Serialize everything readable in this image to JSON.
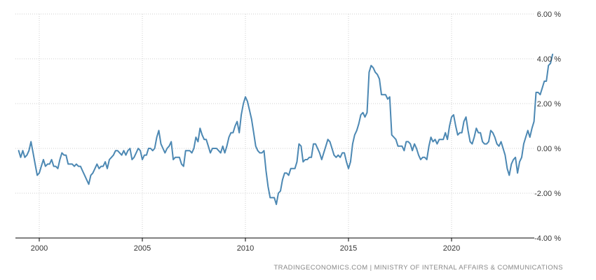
{
  "chart_data": {
    "type": "line",
    "title": "",
    "xlabel": "",
    "ylabel": "",
    "xlim": [
      1999.0,
      2024.9
    ],
    "ylim": [
      -4,
      6
    ],
    "grid": true,
    "colors": {
      "line": "#4c88b3",
      "grid": "#cfcfcf",
      "axis": "#000000"
    },
    "x_ticks": [
      {
        "value": 2000,
        "label": "2000"
      },
      {
        "value": 2005,
        "label": "2005"
      },
      {
        "value": 2010,
        "label": "2010"
      },
      {
        "value": 2015,
        "label": "2015"
      },
      {
        "value": 2020,
        "label": "2020"
      }
    ],
    "y_ticks": [
      {
        "value": 6,
        "label": "6.00 %"
      },
      {
        "value": 4,
        "label": "4.00 %"
      },
      {
        "value": 2,
        "label": "2.00 %"
      },
      {
        "value": 0,
        "label": "0.00 %"
      },
      {
        "value": -2,
        "label": "-2.00 %"
      },
      {
        "value": -4,
        "label": "-4.00 %"
      }
    ],
    "series": [
      {
        "points": [
          [
            1999.0,
            -0.1
          ],
          [
            1999.1,
            -0.4
          ],
          [
            1999.2,
            -0.1
          ],
          [
            1999.3,
            -0.4
          ],
          [
            1999.4,
            -0.3
          ],
          [
            1999.5,
            -0.1
          ],
          [
            1999.6,
            0.3
          ],
          [
            1999.7,
            -0.2
          ],
          [
            1999.8,
            -0.7
          ],
          [
            1999.9,
            -1.2
          ],
          [
            2000.0,
            -1.1
          ],
          [
            2000.1,
            -0.8
          ],
          [
            2000.2,
            -0.5
          ],
          [
            2000.3,
            -0.8
          ],
          [
            2000.4,
            -0.7
          ],
          [
            2000.5,
            -0.7
          ],
          [
            2000.6,
            -0.5
          ],
          [
            2000.7,
            -0.8
          ],
          [
            2000.8,
            -0.8
          ],
          [
            2000.9,
            -0.9
          ],
          [
            2001.0,
            -0.5
          ],
          [
            2001.1,
            -0.2
          ],
          [
            2001.2,
            -0.3
          ],
          [
            2001.3,
            -0.3
          ],
          [
            2001.4,
            -0.7
          ],
          [
            2001.5,
            -0.7
          ],
          [
            2001.6,
            -0.7
          ],
          [
            2001.7,
            -0.8
          ],
          [
            2001.8,
            -0.7
          ],
          [
            2001.9,
            -0.8
          ],
          [
            2002.0,
            -0.8
          ],
          [
            2002.1,
            -1.0
          ],
          [
            2002.2,
            -1.2
          ],
          [
            2002.3,
            -1.4
          ],
          [
            2002.4,
            -1.6
          ],
          [
            2002.5,
            -1.2
          ],
          [
            2002.6,
            -1.1
          ],
          [
            2002.7,
            -0.9
          ],
          [
            2002.8,
            -0.7
          ],
          [
            2002.9,
            -0.9
          ],
          [
            2003.0,
            -0.8
          ],
          [
            2003.1,
            -0.8
          ],
          [
            2003.2,
            -0.6
          ],
          [
            2003.3,
            -0.9
          ],
          [
            2003.4,
            -0.5
          ],
          [
            2003.5,
            -0.4
          ],
          [
            2003.6,
            -0.3
          ],
          [
            2003.7,
            -0.1
          ],
          [
            2003.8,
            -0.1
          ],
          [
            2003.9,
            -0.2
          ],
          [
            2004.0,
            -0.3
          ],
          [
            2004.1,
            -0.1
          ],
          [
            2004.2,
            -0.3
          ],
          [
            2004.3,
            -0.1
          ],
          [
            2004.4,
            0.0
          ],
          [
            2004.5,
            -0.5
          ],
          [
            2004.6,
            -0.4
          ],
          [
            2004.7,
            -0.2
          ],
          [
            2004.8,
            0.0
          ],
          [
            2004.9,
            -0.1
          ],
          [
            2005.0,
            -0.5
          ],
          [
            2005.1,
            -0.3
          ],
          [
            2005.2,
            -0.3
          ],
          [
            2005.3,
            0.0
          ],
          [
            2005.4,
            0.0
          ],
          [
            2005.5,
            -0.1
          ],
          [
            2005.6,
            0.0
          ],
          [
            2005.7,
            0.5
          ],
          [
            2005.8,
            0.8
          ],
          [
            2005.9,
            0.2
          ],
          [
            2006.0,
            0.0
          ],
          [
            2006.1,
            -0.2
          ],
          [
            2006.2,
            0.0
          ],
          [
            2006.3,
            0.1
          ],
          [
            2006.4,
            0.3
          ],
          [
            2006.5,
            -0.5
          ],
          [
            2006.6,
            -0.4
          ],
          [
            2006.7,
            -0.4
          ],
          [
            2006.8,
            -0.4
          ],
          [
            2006.9,
            -0.7
          ],
          [
            2007.0,
            -0.8
          ],
          [
            2007.1,
            -0.1
          ],
          [
            2007.2,
            -0.1
          ],
          [
            2007.3,
            -0.1
          ],
          [
            2007.4,
            -0.2
          ],
          [
            2007.5,
            0.0
          ],
          [
            2007.6,
            0.5
          ],
          [
            2007.7,
            0.3
          ],
          [
            2007.8,
            0.9
          ],
          [
            2007.9,
            0.6
          ],
          [
            2008.0,
            0.4
          ],
          [
            2008.1,
            0.4
          ],
          [
            2008.2,
            0.1
          ],
          [
            2008.3,
            -0.2
          ],
          [
            2008.4,
            0.0
          ],
          [
            2008.5,
            0.0
          ],
          [
            2008.6,
            0.0
          ],
          [
            2008.7,
            -0.1
          ],
          [
            2008.8,
            -0.2
          ],
          [
            2008.9,
            0.1
          ],
          [
            2009.0,
            -0.2
          ],
          [
            2009.1,
            0.1
          ],
          [
            2009.2,
            0.5
          ],
          [
            2009.3,
            0.7
          ],
          [
            2009.4,
            0.7
          ],
          [
            2009.5,
            1.0
          ],
          [
            2009.6,
            1.2
          ],
          [
            2009.7,
            0.7
          ],
          [
            2009.8,
            1.5
          ],
          [
            2009.9,
            2.0
          ],
          [
            2010.0,
            2.3
          ],
          [
            2010.1,
            2.1
          ],
          [
            2010.2,
            1.7
          ],
          [
            2010.3,
            1.3
          ],
          [
            2010.4,
            0.7
          ],
          [
            2010.5,
            0.1
          ],
          [
            2010.6,
            -0.1
          ],
          [
            2010.7,
            -0.2
          ],
          [
            2010.8,
            -0.2
          ],
          [
            2010.9,
            -0.1
          ],
          [
            2011.0,
            -1.0
          ],
          [
            2011.1,
            -1.7
          ],
          [
            2011.2,
            -2.2
          ],
          [
            2011.3,
            -2.2
          ],
          [
            2011.4,
            -2.2
          ],
          [
            2011.5,
            -2.5
          ],
          [
            2011.6,
            -2.0
          ],
          [
            2011.7,
            -1.9
          ],
          [
            2011.8,
            -1.4
          ],
          [
            2011.9,
            -1.1
          ],
          [
            2012.0,
            -1.1
          ],
          [
            2012.1,
            -1.2
          ],
          [
            2012.2,
            -0.9
          ],
          [
            2012.3,
            -0.9
          ],
          [
            2012.4,
            -0.9
          ],
          [
            2012.5,
            -0.6
          ],
          [
            2012.6,
            0.2
          ],
          [
            2012.7,
            0.1
          ],
          [
            2012.8,
            -0.6
          ],
          [
            2012.9,
            -0.5
          ],
          [
            2013.0,
            -0.5
          ],
          [
            2013.1,
            -0.4
          ],
          [
            2013.2,
            -0.4
          ],
          [
            2013.3,
            0.2
          ],
          [
            2013.4,
            0.2
          ],
          [
            2013.5,
            0.0
          ],
          [
            2013.6,
            -0.2
          ],
          [
            2013.7,
            -0.5
          ],
          [
            2013.8,
            -0.2
          ],
          [
            2013.9,
            0.1
          ],
          [
            2014.0,
            0.4
          ],
          [
            2014.1,
            0.3
          ],
          [
            2014.2,
            0.0
          ],
          [
            2014.3,
            -0.3
          ],
          [
            2014.4,
            -0.4
          ],
          [
            2014.5,
            -0.3
          ],
          [
            2014.6,
            -0.4
          ],
          [
            2014.7,
            -0.2
          ],
          [
            2014.8,
            -0.2
          ],
          [
            2014.9,
            -0.6
          ],
          [
            2015.0,
            -0.9
          ],
          [
            2015.1,
            -0.6
          ],
          [
            2015.2,
            0.2
          ],
          [
            2015.3,
            0.6
          ],
          [
            2015.4,
            0.8
          ],
          [
            2015.5,
            1.1
          ],
          [
            2015.6,
            1.5
          ],
          [
            2015.7,
            1.6
          ],
          [
            2015.8,
            1.4
          ],
          [
            2015.9,
            1.6
          ],
          [
            2016.0,
            3.4
          ],
          [
            2016.1,
            3.7
          ],
          [
            2016.2,
            3.6
          ],
          [
            2016.3,
            3.4
          ],
          [
            2016.4,
            3.3
          ],
          [
            2016.5,
            3.1
          ],
          [
            2016.6,
            2.4
          ],
          [
            2016.7,
            2.4
          ],
          [
            2016.8,
            2.4
          ],
          [
            2016.9,
            2.2
          ],
          [
            2017.0,
            2.3
          ],
          [
            2017.1,
            0.6
          ],
          [
            2017.2,
            0.5
          ],
          [
            2017.3,
            0.4
          ],
          [
            2017.4,
            0.1
          ],
          [
            2017.5,
            0.1
          ],
          [
            2017.6,
            0.1
          ],
          [
            2017.7,
            -0.1
          ],
          [
            2017.8,
            0.3
          ],
          [
            2017.9,
            0.3
          ],
          [
            2018.0,
            0.2
          ],
          [
            2018.1,
            -0.1
          ],
          [
            2018.2,
            0.2
          ],
          [
            2018.3,
            0.0
          ],
          [
            2018.4,
            -0.3
          ],
          [
            2018.5,
            -0.5
          ],
          [
            2018.6,
            -0.4
          ],
          [
            2018.7,
            -0.4
          ],
          [
            2018.8,
            -0.5
          ],
          [
            2018.9,
            0.1
          ],
          [
            2019.0,
            0.5
          ],
          [
            2019.1,
            0.3
          ],
          [
            2019.2,
            0.4
          ],
          [
            2019.3,
            0.2
          ],
          [
            2019.4,
            0.4
          ],
          [
            2019.5,
            0.4
          ],
          [
            2019.6,
            0.4
          ],
          [
            2019.7,
            0.7
          ],
          [
            2019.8,
            0.4
          ],
          [
            2019.9,
            1.0
          ],
          [
            2020.0,
            1.4
          ],
          [
            2020.1,
            1.5
          ],
          [
            2020.2,
            1.0
          ],
          [
            2020.3,
            0.6
          ],
          [
            2020.4,
            0.7
          ],
          [
            2020.5,
            0.7
          ],
          [
            2020.6,
            1.2
          ],
          [
            2020.7,
            1.4
          ],
          [
            2020.8,
            0.8
          ],
          [
            2020.9,
            0.3
          ],
          [
            2021.0,
            0.2
          ],
          [
            2021.1,
            0.5
          ],
          [
            2021.2,
            0.9
          ],
          [
            2021.3,
            0.7
          ],
          [
            2021.4,
            0.7
          ],
          [
            2021.5,
            0.3
          ],
          [
            2021.6,
            0.2
          ],
          [
            2021.7,
            0.2
          ],
          [
            2021.8,
            0.3
          ],
          [
            2021.9,
            0.8
          ],
          [
            2022.0,
            0.7
          ],
          [
            2022.1,
            0.5
          ],
          [
            2022.2,
            0.2
          ],
          [
            2022.3,
            0.1
          ],
          [
            2022.4,
            0.3
          ],
          [
            2022.5,
            0.0
          ],
          [
            2022.6,
            -0.3
          ],
          [
            2022.7,
            -0.9
          ],
          [
            2022.8,
            -1.2
          ],
          [
            2022.9,
            -0.7
          ],
          [
            2023.0,
            -0.5
          ],
          [
            2023.1,
            -0.4
          ],
          [
            2023.2,
            -1.1
          ],
          [
            2023.3,
            -0.6
          ],
          [
            2023.4,
            -0.4
          ],
          [
            2023.5,
            0.2
          ],
          [
            2023.6,
            0.5
          ],
          [
            2023.7,
            0.8
          ],
          [
            2023.8,
            0.5
          ],
          [
            2023.9,
            0.9
          ],
          [
            2024.0,
            1.2
          ],
          [
            2024.1,
            2.5
          ],
          [
            2024.2,
            2.5
          ],
          [
            2024.3,
            2.4
          ],
          [
            2024.4,
            2.7
          ],
          [
            2024.5,
            3.0
          ],
          [
            2024.6,
            3.0
          ],
          [
            2024.7,
            3.7
          ],
          [
            2024.8,
            3.8
          ],
          [
            2024.9,
            4.2
          ]
        ]
      }
    ]
  },
  "source": "TRADINGECONOMICS.COM  |  MINISTRY OF INTERNAL AFFAIRS & COMMUNICATIONS"
}
